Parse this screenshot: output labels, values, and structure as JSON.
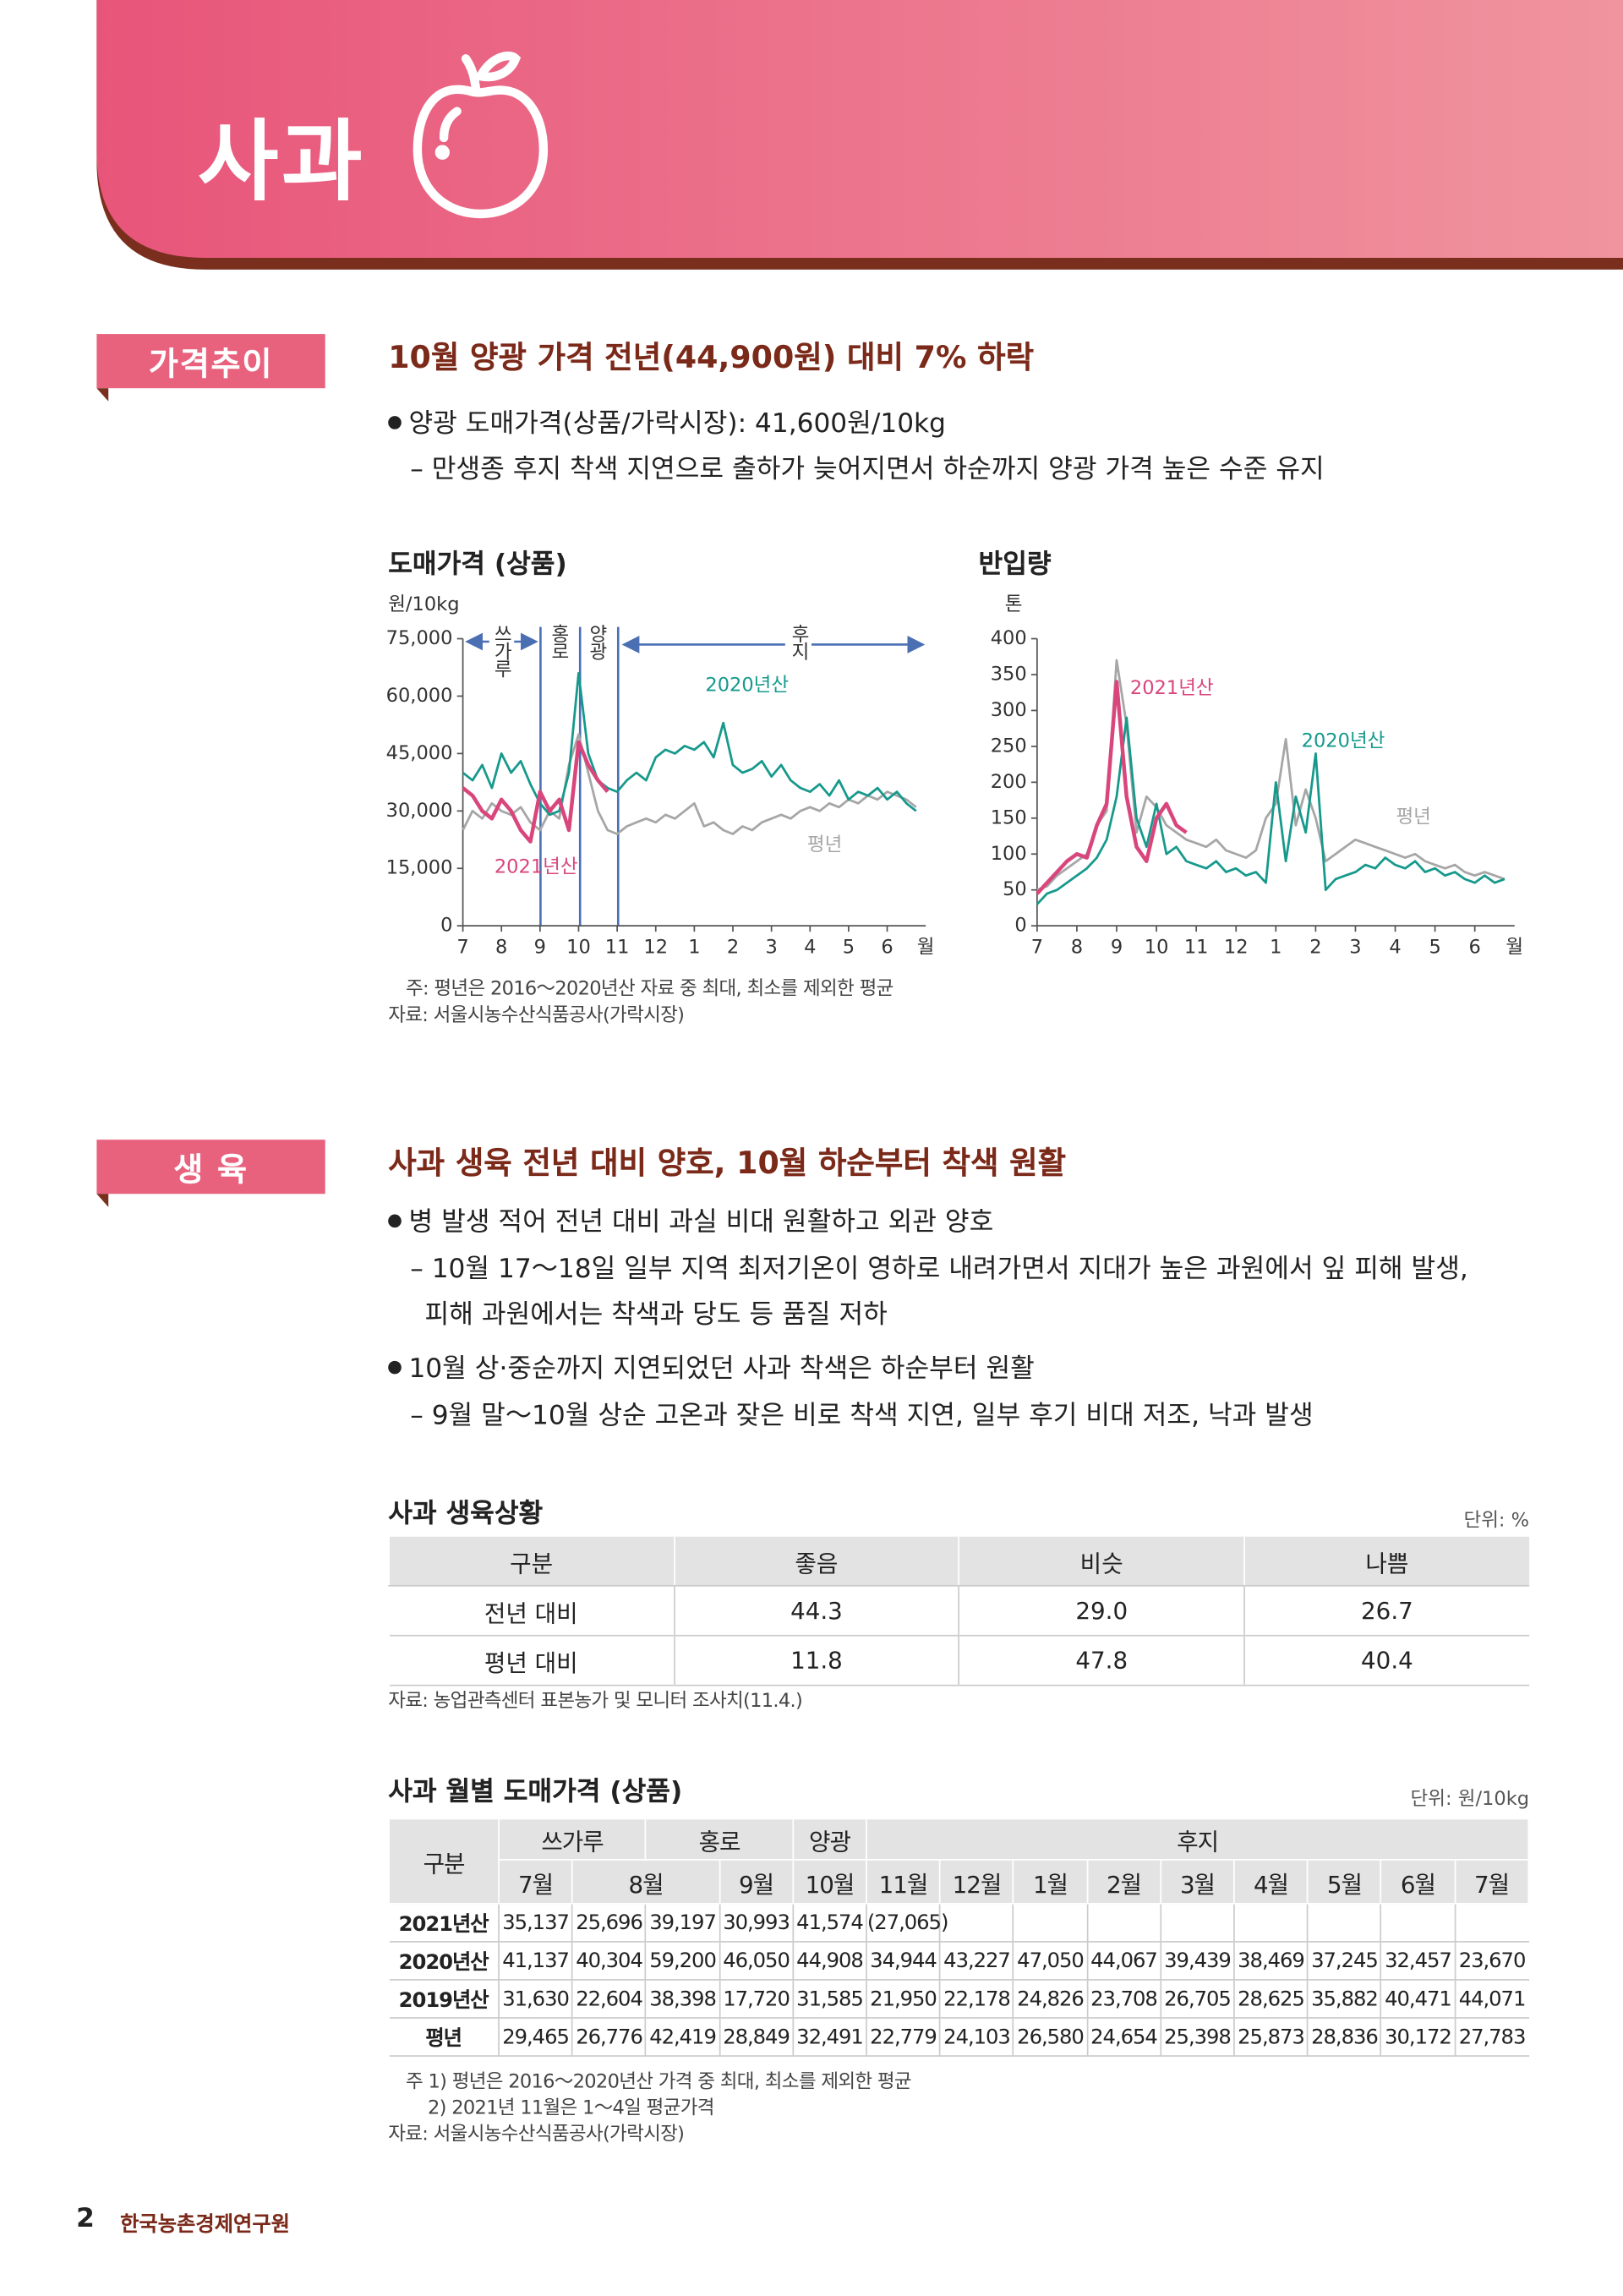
{
  "header": {
    "title": "사과"
  },
  "sections": [
    {
      "label": "가격추이",
      "heading": "10월 양광 가격 전년(44,900원) 대비 7% 하락",
      "bullets": [
        {
          "text": "양광 도매가격(상품/가락시장): 41,600원/10kg",
          "subs": [
            "– 만생종 후지 착색 지연으로 출하가 늦어지면서 하순까지 양광 가격 높은 수준 유지"
          ]
        }
      ]
    },
    {
      "label": "생  육",
      "heading": "사과 생육 전년 대비 양호, 10월 하순부터 착색 원활",
      "bullets": [
        {
          "text": "병 발생 적어 전년 대비 과실 비대 원활하고 외관 양호",
          "subs": [
            "– 10월 17～18일 일부 지역 최저기온이 영하로 내려가면서 지대가 높은 과원에서 잎 피해 발생,",
            "피해 과원에서는 착색과 당도 등 품질 저하"
          ]
        },
        {
          "text": "10월 상·중순까지 지연되었던 사과 착색은 하순부터 원활",
          "subs": [
            "– 9월 말～10월 상순 고온과 잦은 비로 착색 지연, 일부 후기 비대 저조, 낙과 발생"
          ]
        }
      ]
    }
  ],
  "chart_data": [
    {
      "type": "line",
      "title": "도매가격 (상품)",
      "y_unit": "원/10kg",
      "x_label": "월",
      "seasons": [
        "쓰가루",
        "홍로",
        "양광",
        "후지"
      ],
      "x": [
        0,
        0.25,
        0.5,
        0.75,
        1,
        1.25,
        1.5,
        1.75,
        2,
        2.25,
        2.5,
        2.75,
        3,
        3.25,
        3.5,
        3.75,
        4,
        4.25,
        4.5,
        4.75,
        5,
        5.25,
        5.5,
        5.75,
        6,
        6.25,
        6.5,
        6.75,
        7,
        7.25,
        7.5,
        7.75,
        8,
        8.25,
        8.5,
        8.75,
        9,
        9.25,
        9.5,
        9.75,
        10,
        10.25,
        10.5,
        10.75,
        11,
        11.25,
        11.5,
        11.75
      ],
      "xlim": [
        0,
        12
      ],
      "xticks": [
        {
          "value": 0,
          "label": "7"
        },
        {
          "value": 1,
          "label": "8"
        },
        {
          "value": 2,
          "label": "9"
        },
        {
          "value": 3,
          "label": "10"
        },
        {
          "value": 4,
          "label": "11"
        },
        {
          "value": 5,
          "label": "12"
        },
        {
          "value": 6,
          "label": "1"
        },
        {
          "value": 7,
          "label": "2"
        },
        {
          "value": 8,
          "label": "3"
        },
        {
          "value": 9,
          "label": "4"
        },
        {
          "value": 10,
          "label": "5"
        },
        {
          "value": 11,
          "label": "6"
        }
      ],
      "ylim": [
        0,
        75000
      ],
      "yticks": [
        0,
        {
          "value": 15000,
          "label": "15,000"
        },
        {
          "value": 30000,
          "label": "30,000"
        },
        {
          "value": 45000,
          "label": "45,000"
        },
        {
          "value": 60000,
          "label": "60,000"
        },
        {
          "value": 75000,
          "label": "75,000"
        }
      ],
      "series": [
        {
          "name": "평년",
          "color": "#a6a6a6",
          "values": [
            25000,
            30000,
            28000,
            32000,
            30000,
            29000,
            31000,
            27000,
            25000,
            30000,
            28000,
            42000,
            50000,
            40000,
            30000,
            25000,
            24000,
            26000,
            27000,
            28000,
            27000,
            29000,
            28000,
            30000,
            32000,
            26000,
            27000,
            25000,
            24000,
            26000,
            25000,
            27000,
            28000,
            29000,
            28000,
            30000,
            31000,
            30000,
            32000,
            31000,
            33000,
            32000,
            34000,
            33000,
            35000,
            34000,
            33000,
            31000
          ]
        },
        {
          "name": "2020년산",
          "color": "#16998c",
          "values": [
            40000,
            38000,
            42000,
            36000,
            45000,
            40000,
            43000,
            37000,
            32000,
            29000,
            30000,
            40000,
            66000,
            45000,
            38000,
            36000,
            35000,
            38000,
            40000,
            38000,
            44000,
            46000,
            45000,
            47000,
            46000,
            48000,
            44000,
            53000,
            42000,
            40000,
            41000,
            43000,
            39000,
            42000,
            38000,
            36000,
            35000,
            37000,
            34000,
            38000,
            33000,
            35000,
            34000,
            36000,
            33000,
            35000,
            32000,
            30000
          ]
        },
        {
          "name": "2021년산",
          "color": "#d9467c",
          "values": [
            36000,
            34000,
            30000,
            28000,
            33000,
            30000,
            25000,
            22000,
            35000,
            30000,
            33000,
            25000,
            48000,
            42000,
            38000,
            35000,
            null,
            null,
            null,
            null,
            null,
            null,
            null,
            null,
            null,
            null,
            null,
            null,
            null,
            null,
            null,
            null,
            null,
            null,
            null,
            null,
            null,
            null,
            null,
            null,
            null,
            null,
            null,
            null,
            null,
            null,
            null,
            null
          ]
        }
      ]
    },
    {
      "type": "line",
      "title": "반입량",
      "y_unit": "톤",
      "x_label": "월",
      "x": [
        0,
        0.25,
        0.5,
        0.75,
        1,
        1.25,
        1.5,
        1.75,
        2,
        2.25,
        2.5,
        2.75,
        3,
        3.25,
        3.5,
        3.75,
        4,
        4.25,
        4.5,
        4.75,
        5,
        5.25,
        5.5,
        5.75,
        6,
        6.25,
        6.5,
        6.75,
        7,
        7.25,
        7.5,
        7.75,
        8,
        8.25,
        8.5,
        8.75,
        9,
        9.25,
        9.5,
        9.75,
        10,
        10.25,
        10.5,
        10.75,
        11,
        11.25,
        11.5,
        11.75
      ],
      "xlim": [
        0,
        12
      ],
      "xticks": [
        {
          "value": 0,
          "label": "7"
        },
        {
          "value": 1,
          "label": "8"
        },
        {
          "value": 2,
          "label": "9"
        },
        {
          "value": 3,
          "label": "10"
        },
        {
          "value": 4,
          "label": "11"
        },
        {
          "value": 5,
          "label": "12"
        },
        {
          "value": 6,
          "label": "1"
        },
        {
          "value": 7,
          "label": "2"
        },
        {
          "value": 8,
          "label": "3"
        },
        {
          "value": 9,
          "label": "4"
        },
        {
          "value": 10,
          "label": "5"
        },
        {
          "value": 11,
          "label": "6"
        }
      ],
      "ylim": [
        0,
        400
      ],
      "yticks": [
        0,
        50,
        100,
        150,
        200,
        250,
        300,
        350,
        400
      ],
      "series": [
        {
          "name": "평년",
          "color": "#a6a6a6",
          "values": [
            50,
            55,
            70,
            80,
            90,
            100,
            140,
            160,
            370,
            280,
            130,
            180,
            165,
            140,
            130,
            120,
            115,
            110,
            120,
            105,
            100,
            95,
            105,
            150,
            170,
            260,
            140,
            190,
            150,
            90,
            100,
            110,
            120,
            115,
            110,
            105,
            100,
            95,
            100,
            90,
            85,
            80,
            85,
            75,
            70,
            75,
            70,
            65
          ]
        },
        {
          "name": "2020년산",
          "color": "#16998c",
          "values": [
            30,
            45,
            50,
            60,
            70,
            80,
            95,
            120,
            180,
            290,
            150,
            110,
            170,
            100,
            110,
            90,
            85,
            80,
            90,
            75,
            80,
            70,
            75,
            60,
            200,
            90,
            180,
            130,
            240,
            50,
            65,
            70,
            75,
            85,
            80,
            95,
            85,
            80,
            90,
            75,
            80,
            70,
            75,
            65,
            60,
            70,
            60,
            65
          ]
        },
        {
          "name": "2021년산",
          "color": "#d9467c",
          "values": [
            45,
            60,
            75,
            90,
            100,
            95,
            140,
            170,
            340,
            180,
            110,
            90,
            150,
            170,
            140,
            130,
            null,
            null,
            null,
            null,
            null,
            null,
            null,
            null,
            null,
            null,
            null,
            null,
            null,
            null,
            null,
            null,
            null,
            null,
            null,
            null,
            null,
            null,
            null,
            null,
            null,
            null,
            null,
            null,
            null,
            null,
            null,
            null
          ]
        }
      ]
    }
  ],
  "chart_notes": [
    "주: 평년은 2016～2020년산 자료 중 최대, 최소를 제외한 평균",
    "자료: 서울시농수산식품공사(가락시장)"
  ],
  "table1": {
    "title": "사과 생육상황",
    "unit": "단위: %",
    "header": [
      "구분",
      "좋음",
      "비슷",
      "나쁨"
    ],
    "rows": [
      [
        "전년 대비",
        "44.3",
        "29.0",
        "26.7"
      ],
      [
        "평년 대비",
        "11.8",
        "47.8",
        "40.4"
      ]
    ],
    "source": "자료: 농업관측센터 표본농가 및 모니터 조사치(11.4.)"
  },
  "table2": {
    "title": "사과 월별 도매가격 (상품)",
    "unit": "단위: 원/10kg",
    "corner": "구분",
    "varieties": [
      "쓰가루",
      "홍로",
      "양광",
      "후지"
    ],
    "months": [
      "7월",
      "8월",
      "9월",
      "10월",
      "11월",
      "12월",
      "1월",
      "2월",
      "3월",
      "4월",
      "5월",
      "6월",
      "7월"
    ],
    "rows": [
      {
        "label": "2021년산",
        "cells": [
          "35,137",
          "25,696",
          "39,197",
          "30,993",
          "41,574",
          "(27,065)"
        ]
      },
      {
        "label": "2020년산",
        "cells": [
          "41,137",
          "40,304",
          "59,200",
          "46,050",
          "44,908",
          "34,944",
          "43,227",
          "47,050",
          "44,067",
          "39,439",
          "38,469",
          "37,245",
          "32,457",
          "23,670"
        ]
      },
      {
        "label": "2019년산",
        "cells": [
          "31,630",
          "22,604",
          "38,398",
          "17,720",
          "31,585",
          "21,950",
          "22,178",
          "24,826",
          "23,708",
          "26,705",
          "28,625",
          "35,882",
          "40,471",
          "44,071"
        ]
      },
      {
        "label": "평년",
        "cells": [
          "29,465",
          "26,776",
          "42,419",
          "28,849",
          "32,491",
          "22,779",
          "24,103",
          "26,580",
          "24,654",
          "25,398",
          "25,873",
          "28,836",
          "30,172",
          "27,783"
        ]
      }
    ],
    "notes": [
      "주 1) 평년은 2016～2020년산 가격 중 최대, 최소를 제외한 평균",
      "2) 2021년 11월은 1～4일 평균가격"
    ],
    "source": "자료: 서울시농수산식품공사(가락시장)"
  },
  "footer": {
    "page": "2",
    "org": "한국농촌경제연구원"
  }
}
